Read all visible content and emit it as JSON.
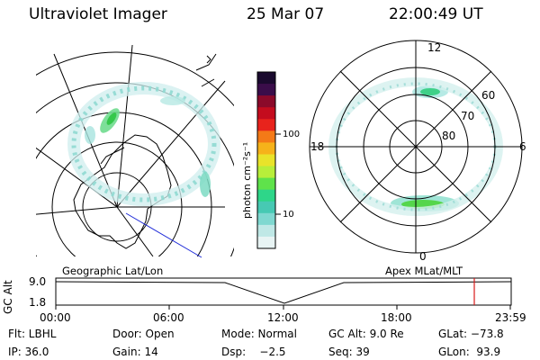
{
  "header": {
    "instrument": "Ultraviolet Imager",
    "date": "25 Mar 07",
    "time": "22:00:49 UT"
  },
  "left_map": {
    "label": "Geographic Lat/Lon"
  },
  "right_map": {
    "label": "Apex MLat/MLT",
    "mlt_labels": [
      "12",
      "18",
      "6",
      "0"
    ],
    "lat_labels": [
      "60",
      "70",
      "80"
    ]
  },
  "colorbar": {
    "unit_label": "photon cm⁻²s⁻¹",
    "ticks": [
      "100",
      "10"
    ],
    "colors": [
      "#1a0a2e",
      "#3a0d4a",
      "#8b0a2a",
      "#c40c1e",
      "#e8231c",
      "#f47a17",
      "#f6b21a",
      "#e9e32a",
      "#b8ee3a",
      "#5fe24b",
      "#2ed689",
      "#47c9b3",
      "#7fd8d0",
      "#bfe8e6",
      "#e8f4f4"
    ]
  },
  "timeline": {
    "y_axis_label": "GC Alt",
    "y_ticks": [
      "9.0",
      "1.8"
    ],
    "x_ticks": [
      "00:00",
      "06:00",
      "12:00",
      "18:00",
      "23:59"
    ],
    "marker_color": "#d81b1b"
  },
  "status": {
    "filter": "Flt: LBHL",
    "door": "Door: Open",
    "mode": "Mode: Normal",
    "gc_alt": "GC Alt: 9.0 Re",
    "glat": "GLat: −73.8",
    "ip": "IP: 36.0",
    "gain": "Gain: 14",
    "dsp": "Dsp:    −2.5",
    "seq": "Seq: 39",
    "glon": "GLon:  93.9"
  }
}
